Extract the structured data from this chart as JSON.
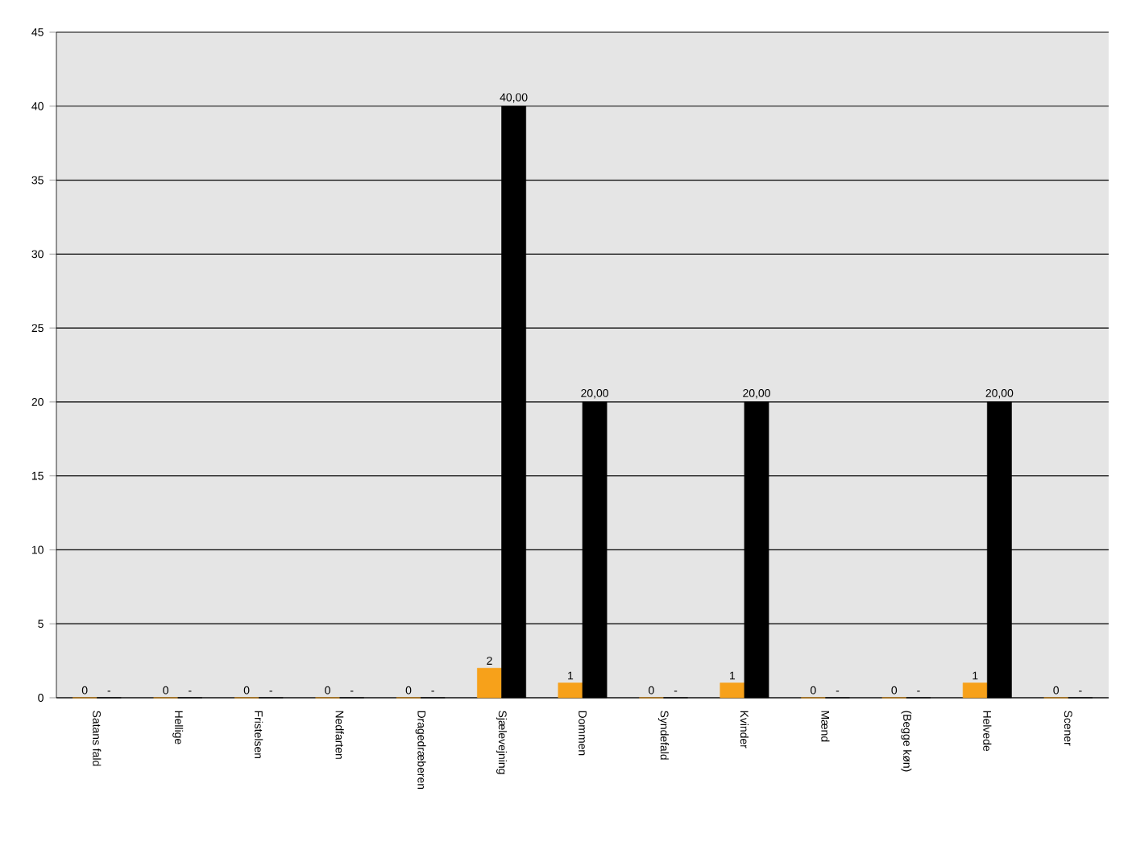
{
  "chart_data": {
    "type": "bar",
    "categories": [
      "Satans fald",
      "Hellige",
      "Fristelsen",
      "Nedfarten",
      "Dragedræberen",
      "Sjælevejning",
      "Dommen",
      "Syndefald",
      "Kvinder",
      "Mænd",
      "(Begge køn)",
      "Helvede",
      "Scener"
    ],
    "series": [
      {
        "color": "#f7a11a",
        "values": [
          0,
          0,
          0,
          0,
          0,
          2,
          1,
          0,
          1,
          0,
          0,
          1,
          0
        ],
        "value_labels": [
          "0",
          "0",
          "0",
          "0",
          "0",
          "2",
          "1",
          "0",
          "1",
          "0",
          "0",
          "1",
          "0"
        ]
      },
      {
        "color": "#000000",
        "values": [
          0,
          0,
          0,
          0,
          0,
          40,
          20,
          0,
          20,
          0,
          0,
          20,
          0
        ],
        "value_labels": [
          "-",
          "-",
          "-",
          "-",
          "-",
          "40,00",
          "20,00",
          "-",
          "20,00",
          "-",
          "-",
          "20,00",
          "-"
        ]
      }
    ],
    "ylim": [
      0,
      45
    ],
    "yticks": [
      0,
      5,
      10,
      15,
      20,
      25,
      30,
      35,
      40,
      45
    ],
    "grid": "y"
  }
}
